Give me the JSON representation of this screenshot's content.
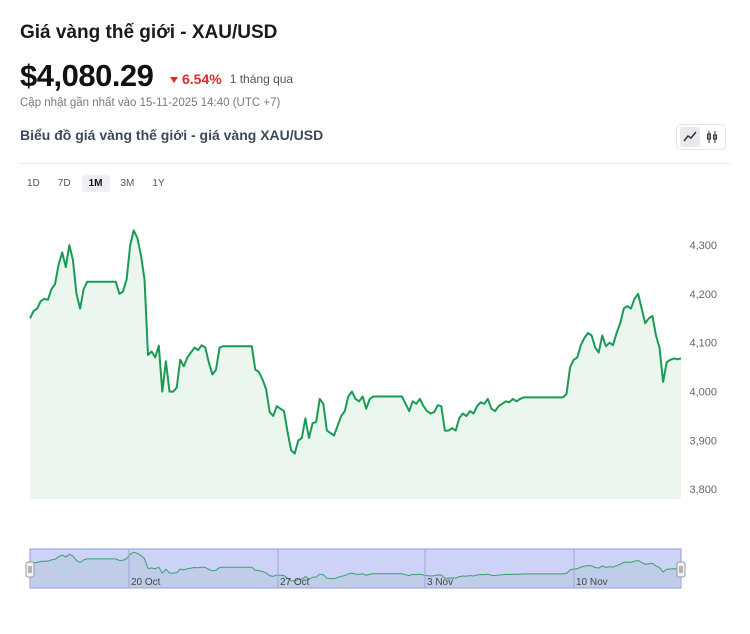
{
  "header": {
    "title": "Giá vàng thế giới - XAU/USD",
    "price": "$4,080.29",
    "change_pct": "6.54%",
    "change_period": "1 tháng qua",
    "updated": "Cập nhật gần nhất vào 15-11-2025 14:40 (UTC +7)",
    "chart_title": "Biểu đồ giá vàng thế giới - giá vàng XAU/USD"
  },
  "view_toggle": {
    "icons": [
      "line-chart-icon",
      "candlestick-icon"
    ],
    "active": "line-chart-icon"
  },
  "ranges": {
    "items": [
      "1D",
      "7D",
      "1M",
      "3M",
      "1Y"
    ],
    "active": "1M"
  },
  "colors": {
    "line": "#1a9b55",
    "fill": "#eaf6ee",
    "down": "#e02b2b",
    "navigator_bg": "#ccd3f7",
    "navigator_line": "#3aa06a"
  },
  "chart_data": {
    "type": "area",
    "title": "",
    "xlabel": "",
    "ylabel": "",
    "ylim": [
      3780,
      4335
    ],
    "yticks": [
      3800,
      3900,
      4000,
      4100,
      4200,
      4300
    ],
    "ytick_labels": [
      "3,800",
      "3,900",
      "4,000",
      "4,100",
      "4,200",
      "4,300"
    ],
    "navigator_labels": [
      "20 Oct",
      "27 Oct",
      "3 Nov",
      "10 Nov"
    ],
    "grid": false,
    "legend": "none",
    "series": [
      {
        "values": [
          4150,
          4165,
          4170,
          4185,
          4190,
          4188,
          4210,
          4220,
          4260,
          4285,
          4255,
          4300,
          4270,
          4200,
          4170,
          4210,
          4225,
          4225,
          4225,
          4225,
          4225,
          4225,
          4225,
          4225,
          4225,
          4200,
          4205,
          4230,
          4300,
          4330,
          4315,
          4280,
          4230,
          4075,
          4082,
          4070,
          4094,
          4000,
          4062,
          4000,
          4000,
          4008,
          4065,
          4052,
          4070,
          4080,
          4090,
          4085,
          4095,
          4090,
          4060,
          4035,
          4045,
          4090,
          4093,
          4093,
          4093,
          4093,
          4093,
          4093,
          4093,
          4093,
          4093,
          4045,
          4040,
          4025,
          4005,
          3958,
          3950,
          3970,
          3965,
          3960,
          3918,
          3880,
          3873,
          3900,
          3905,
          3945,
          3905,
          3935,
          3938,
          3985,
          3975,
          3920,
          3915,
          3910,
          3930,
          3950,
          3960,
          3990,
          4000,
          3985,
          3980,
          3990,
          3965,
          3985,
          3990,
          3990,
          3990,
          3990,
          3990,
          3990,
          3990,
          3990,
          3990,
          3975,
          3960,
          3980,
          3975,
          3985,
          3970,
          3960,
          3955,
          3958,
          3972,
          3970,
          3920,
          3920,
          3925,
          3920,
          3945,
          3955,
          3950,
          3960,
          3955,
          3970,
          3978,
          3975,
          3985,
          3965,
          3960,
          3970,
          3975,
          3980,
          3978,
          3985,
          3980,
          3985,
          3988,
          3988,
          3988,
          3988,
          3988,
          3988,
          3988,
          3988,
          3988,
          3988,
          3988,
          3988,
          3995,
          4050,
          4065,
          4070,
          4095,
          4110,
          4120,
          4115,
          4090,
          4080,
          4115,
          4093,
          4100,
          4095,
          4120,
          4140,
          4170,
          4175,
          4170,
          4190,
          4200,
          4170,
          4140,
          4150,
          4155,
          4115,
          4090,
          4020,
          4060,
          4065,
          4068,
          4066,
          4068
        ]
      }
    ]
  }
}
